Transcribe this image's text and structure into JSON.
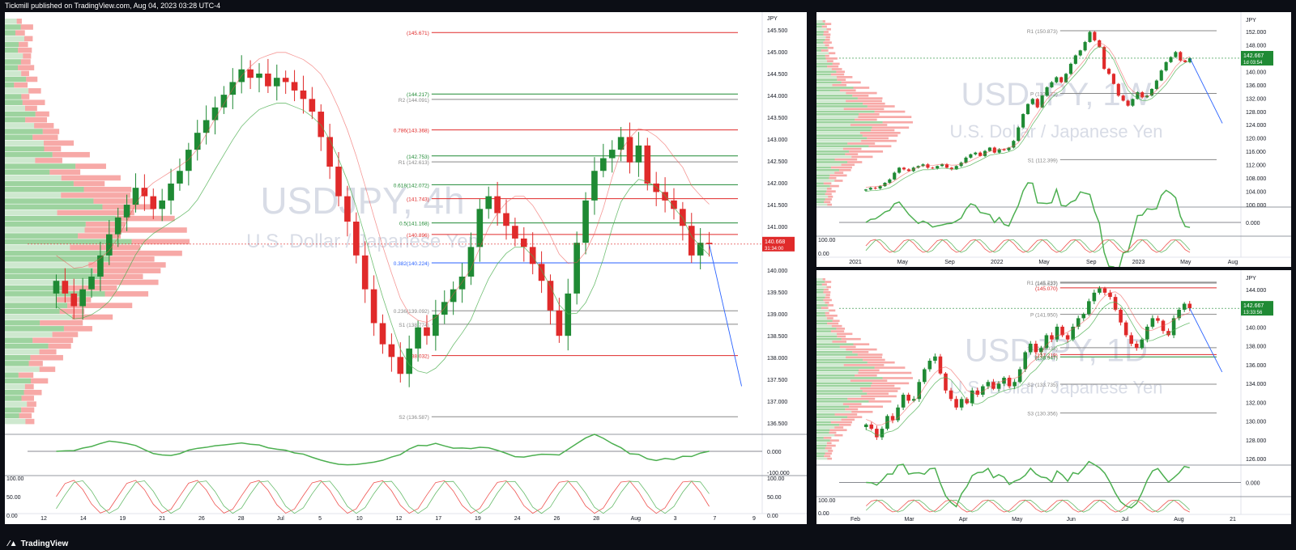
{
  "header": {
    "text": "Tickmill published on TradingView.com, Aug 04, 2023 03:28 UTC-4"
  },
  "footer": {
    "brand": "TradingView"
  },
  "colors": {
    "up": "#1f8a34",
    "down": "#e02a2a",
    "green_line": "#4caf50",
    "red_line": "#ef5350",
    "blue": "#2962ff"
  },
  "chart_data": [
    {
      "type": "candlestick",
      "symbol": "USDJPY",
      "interval": "4h",
      "watermark_symbol": "USDJPY, 4h",
      "watermark_name": "U.S. Dollar / Japanese Yen",
      "currency": "JPY",
      "y_ticks": [
        "145.500",
        "145.000",
        "144.500",
        "144.000",
        "143.500",
        "143.000",
        "142.500",
        "142.000",
        "141.500",
        "141.000",
        "140.500",
        "140.000",
        "139.500",
        "139.000",
        "138.500",
        "138.000",
        "137.500",
        "137.000",
        "136.500"
      ],
      "x_ticks": [
        "12",
        "14",
        "19",
        "21",
        "26",
        "28",
        "Jul",
        "5",
        "10",
        "12",
        "17",
        "19",
        "24",
        "26",
        "28",
        "Aug",
        "3",
        "7",
        "9"
      ],
      "ylim": [
        136.4,
        146.0
      ],
      "last_price": "140.668",
      "countdown": "31:34:00",
      "levels": [
        {
          "label": "(145.671)",
          "value": 145.671,
          "color": "#e02a2a"
        },
        {
          "label": "(144.217)",
          "value": 144.217,
          "color": "#1f8a34"
        },
        {
          "label": "R2 (144.091)",
          "value": 144.091,
          "color": "#888888"
        },
        {
          "label": "0.786(143.368)",
          "value": 143.368,
          "color": "#e02a2a"
        },
        {
          "label": "(142.753)",
          "value": 142.753,
          "color": "#1f8a34"
        },
        {
          "label": "R1 (142.613)",
          "value": 142.613,
          "color": "#888888"
        },
        {
          "label": "0.618(142.072)",
          "value": 142.072,
          "color": "#1f8a34"
        },
        {
          "label": "(141.743)",
          "value": 141.743,
          "color": "#e02a2a"
        },
        {
          "label": "0.5(141.168)",
          "value": 141.168,
          "color": "#1f8a34"
        },
        {
          "label": "(140.896)",
          "value": 140.896,
          "color": "#e02a2a"
        },
        {
          "label": "0.382(140.224)",
          "value": 140.224,
          "color": "#2962ff"
        },
        {
          "label": "0.236(139.092)",
          "value": 139.092,
          "color": "#888888"
        },
        {
          "label": "S1 (138.774)",
          "value": 138.774,
          "color": "#888888"
        },
        {
          "label": "(138.032)",
          "value": 138.032,
          "color": "#e02a2a"
        },
        {
          "label": "S2 (136.587)",
          "value": 136.587,
          "color": "#888888"
        }
      ],
      "close_series": [
        139.8,
        139.5,
        139.2,
        139.6,
        139.9,
        140.4,
        140.9,
        141.3,
        141.6,
        142.0,
        141.8,
        141.5,
        141.7,
        142.1,
        142.4,
        142.9,
        143.3,
        143.6,
        143.9,
        144.2,
        144.5,
        144.8,
        144.6,
        144.7,
        144.4,
        144.6,
        144.5,
        144.3,
        144.1,
        143.8,
        143.2,
        142.5,
        141.8,
        141.2,
        140.4,
        139.6,
        138.8,
        138.3,
        138.0,
        137.6,
        138.2,
        138.7,
        138.5,
        139.0,
        139.3,
        139.6,
        139.9,
        140.6,
        141.5,
        141.8,
        141.4,
        141.1,
        140.8,
        140.6,
        140.2,
        139.8,
        139.1,
        138.5,
        139.5,
        140.7,
        141.7,
        142.4,
        142.7,
        142.9,
        143.2,
        142.6,
        143.0,
        142.1,
        141.9,
        141.7,
        141.5,
        141.1,
        140.4,
        140.7,
        140.668
      ],
      "oscillator_ticks": [
        "0.000",
        "-100.000",
        "100.00",
        "50.00",
        "0.00"
      ]
    },
    {
      "type": "candlestick",
      "symbol": "USDJPY",
      "interval": "1W",
      "watermark_symbol": "USDJPY, 1W",
      "watermark_name": "U.S. Dollar / Japanese Yen",
      "currency": "JPY",
      "y_ticks": [
        "152.000",
        "148.000",
        "144.000",
        "140.000",
        "136.000",
        "132.000",
        "128.000",
        "124.000",
        "120.000",
        "116.000",
        "112.000",
        "108.000",
        "104.000",
        "100.000"
      ],
      "x_ticks": [
        "2021",
        "May",
        "Sep",
        "2022",
        "May",
        "Sep",
        "2023",
        "May",
        "Aug"
      ],
      "ylim": [
        98.5,
        154.0
      ],
      "last_price": "142.667",
      "countdown": "1d 03:54",
      "levels": [
        {
          "label": "R1 (150.873)",
          "value": 150.873,
          "color": "#888888"
        },
        {
          "label": "P (132.172)",
          "value": 132.172,
          "color": "#888888"
        },
        {
          "label": "S1 (112.399)",
          "value": 112.399,
          "color": "#888888"
        }
      ],
      "close_series": [
        103.5,
        104.0,
        103.8,
        104.5,
        105.5,
        106.5,
        108.5,
        110.0,
        109.5,
        109.0,
        110.0,
        110.5,
        111.0,
        110.0,
        109.8,
        110.5,
        111.0,
        110.0,
        109.5,
        110.5,
        111.5,
        113.0,
        114.0,
        114.5,
        113.5,
        115.0,
        116.0,
        114.5,
        115.5,
        115.2,
        116.0,
        118.0,
        122.0,
        126.0,
        129.0,
        130.5,
        128.0,
        131.5,
        134.0,
        135.5,
        137.0,
        135.5,
        138.0,
        141.0,
        143.5,
        145.0,
        147.5,
        150.5,
        148.0,
        146.0,
        139.5,
        138.0,
        135.0,
        131.5,
        130.0,
        128.5,
        130.5,
        132.5,
        131.0,
        131.5,
        133.5,
        136.0,
        139.0,
        141.5,
        143.0,
        144.5,
        142.0,
        141.5,
        142.667
      ],
      "oscillator_ticks": [
        "0.000",
        "100.00",
        "0.00"
      ]
    },
    {
      "type": "candlestick",
      "symbol": "USDJPY",
      "interval": "1D",
      "watermark_symbol": "USDJPY, 1D",
      "watermark_name": "U.S. Dollar / Japanese Yen",
      "currency": "JPY",
      "y_ticks": [
        "144.000",
        "142.000",
        "140.000",
        "138.000",
        "136.000",
        "134.000",
        "132.000",
        "130.000",
        "128.000",
        "126.000"
      ],
      "x_ticks": [
        "Feb",
        "Mar",
        "Apr",
        "May",
        "Jun",
        "Jul",
        "Aug",
        "21"
      ],
      "ylim": [
        124.8,
        146.2
      ],
      "last_price": "142.667",
      "countdown": "13:33:56",
      "levels": [
        {
          "label": "(145.627)",
          "value": 145.627,
          "color": "#888888"
        },
        {
          "label": "(145.070)",
          "value": 145.07,
          "color": "#e02a2a"
        },
        {
          "label": "R1 (145.733)",
          "value": 145.733,
          "color": "#888888"
        },
        {
          "label": "P (141.950)",
          "value": 141.95,
          "color": "#888888"
        },
        {
          "label": "S1 (138.033)",
          "value": 138.033,
          "color": "#888888"
        },
        {
          "label": "(137.219)",
          "value": 137.219,
          "color": "#e02a2a"
        },
        {
          "label": "(136.947)",
          "value": 136.947,
          "color": "#1f8a34"
        },
        {
          "label": "S2 (133.735)",
          "value": 133.735,
          "color": "#888888"
        },
        {
          "label": "S3 (130.356)",
          "value": 130.356,
          "color": "#888888"
        }
      ],
      "close_series": [
        129.0,
        128.5,
        127.5,
        128.5,
        130.0,
        129.5,
        131.0,
        132.5,
        131.8,
        132.0,
        134.0,
        135.5,
        136.5,
        137.0,
        135.0,
        133.0,
        132.0,
        131.0,
        132.0,
        131.5,
        133.0,
        132.5,
        133.5,
        134.0,
        133.2,
        133.8,
        134.5,
        133.5,
        134.0,
        135.5,
        137.5,
        138.5,
        137.5,
        138.0,
        139.5,
        139.0,
        140.5,
        139.5,
        139.0,
        140.5,
        141.5,
        142.0,
        143.5,
        144.5,
        145.0,
        144.5,
        144.0,
        142.5,
        141.0,
        139.5,
        138.5,
        138.0,
        139.0,
        140.5,
        141.5,
        141.2,
        140.0,
        139.5,
        141.5,
        142.5,
        143.2,
        142.667
      ],
      "oscillator_ticks": [
        "0.000",
        "100.00",
        "0.00"
      ]
    }
  ]
}
